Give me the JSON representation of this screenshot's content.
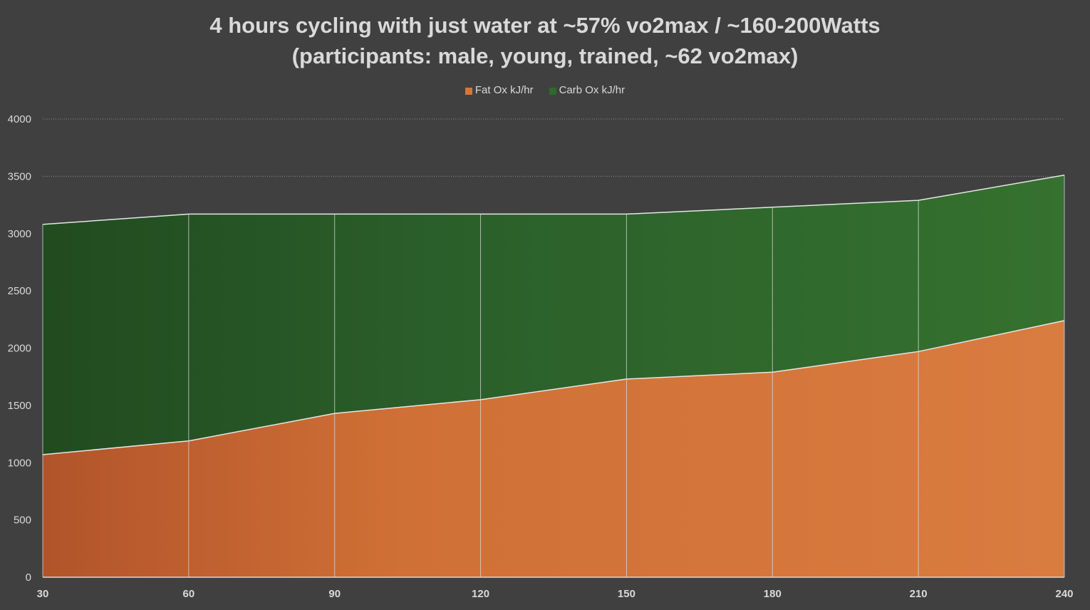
{
  "chart_data": {
    "type": "area",
    "stacked": true,
    "title_line1": "4 hours cycling with just water at ~57% vo2max / ~160-200Watts",
    "title_line2": "(participants: male, young, trained, ~62 vo2max)",
    "xlabel": "",
    "ylabel": "",
    "x": [
      30,
      60,
      90,
      120,
      150,
      180,
      210,
      240
    ],
    "ylim": [
      0,
      4000
    ],
    "yticks": [
      0,
      500,
      1000,
      1500,
      2000,
      2500,
      3000,
      3500,
      4000
    ],
    "grid": true,
    "legend_position": "top-center",
    "series": [
      {
        "name": "Fat Ox kJ/hr",
        "color": "#d4763b",
        "values": [
          1070,
          1190,
          1430,
          1550,
          1730,
          1790,
          1970,
          2240
        ]
      },
      {
        "name": "Carb Ox kJ/hr",
        "color": "#2e6a2e",
        "values": [
          2010,
          1980,
          1740,
          1620,
          1440,
          1440,
          1320,
          1270
        ]
      }
    ]
  }
}
